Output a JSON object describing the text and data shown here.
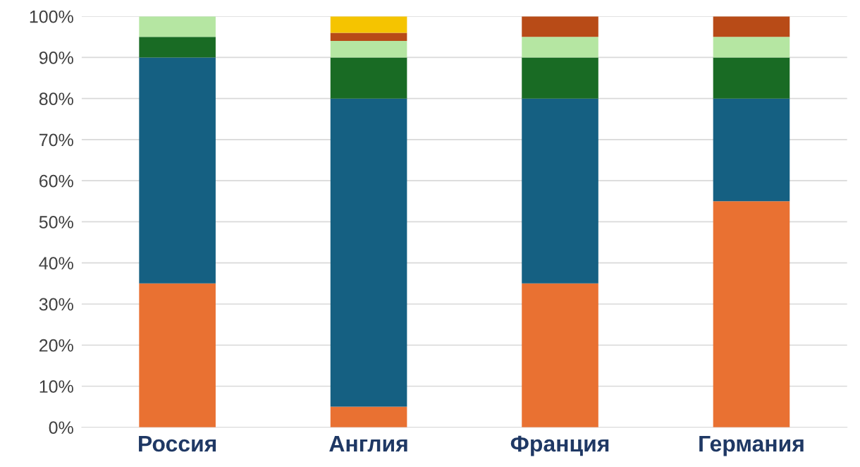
{
  "chart_data": {
    "type": "bar",
    "stacked": true,
    "categories": [
      "Россия",
      "Англия",
      "Франция",
      "Германия"
    ],
    "series": [
      {
        "color": "#e97132",
        "values": [
          35,
          5,
          35,
          55
        ]
      },
      {
        "color": "#156082",
        "values": [
          55,
          75,
          45,
          25
        ]
      },
      {
        "color": "#196b24",
        "values": [
          5,
          10,
          10,
          10
        ]
      },
      {
        "color": "#b5e6a2",
        "values": [
          5,
          4,
          5,
          5
        ]
      },
      {
        "color": "#b84b17",
        "values": [
          null,
          2,
          5,
          5
        ]
      },
      {
        "color": "#f5c400",
        "values": [
          null,
          4,
          null,
          null
        ]
      }
    ],
    "ylim": [
      0,
      100
    ],
    "yticks": [
      {
        "value": 0,
        "label": "0%"
      },
      {
        "value": 10,
        "label": "10%"
      },
      {
        "value": 20,
        "label": "20%"
      },
      {
        "value": 30,
        "label": "30%"
      },
      {
        "value": 40,
        "label": "40%"
      },
      {
        "value": 50,
        "label": "50%"
      },
      {
        "value": 60,
        "label": "60%"
      },
      {
        "value": 70,
        "label": "70%"
      },
      {
        "value": 80,
        "label": "80%"
      },
      {
        "value": 90,
        "label": "90%"
      },
      {
        "value": 100,
        "label": "100%"
      }
    ],
    "grid": "y"
  }
}
